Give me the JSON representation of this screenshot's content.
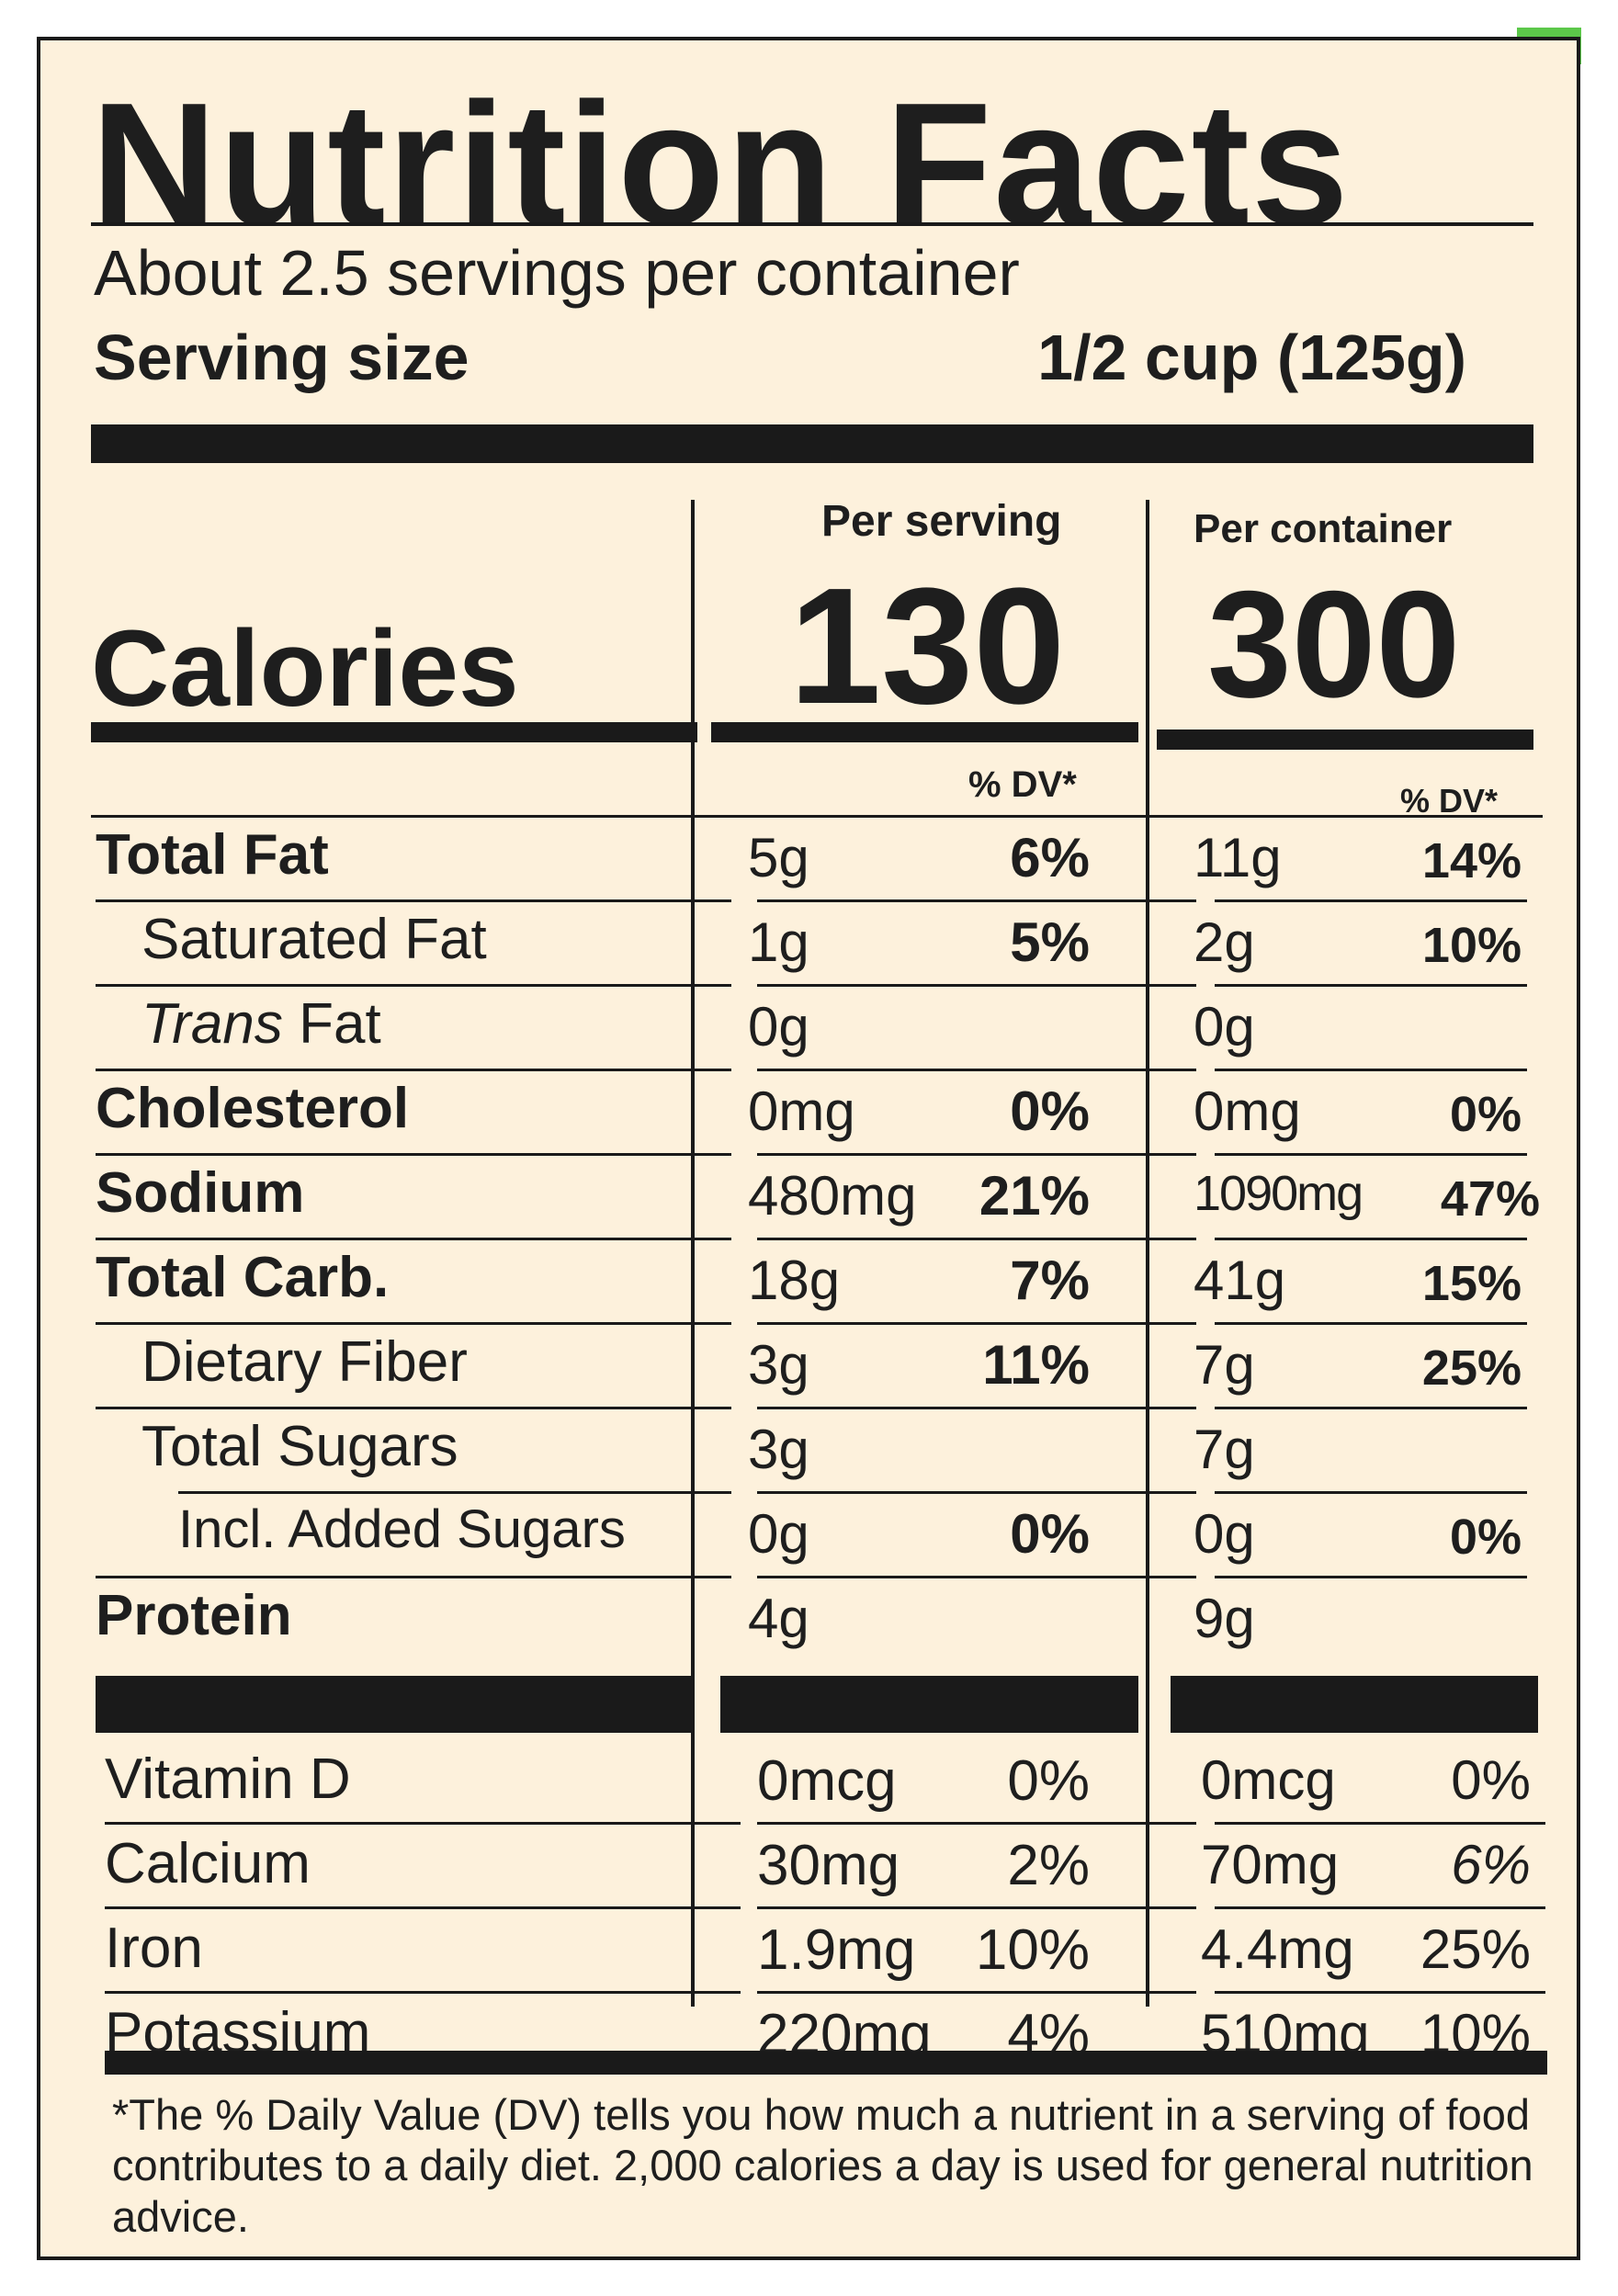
{
  "label": {
    "title": "Nutrition Facts",
    "servings_per_container": "About 2.5 servings per container",
    "serving_size_label": "Serving size",
    "serving_size_value": "1/2 cup (125g)",
    "per_serving_header": "Per serving",
    "per_container_header": "Per container",
    "calories_label": "Calories",
    "calories_per_serving": "130",
    "calories_per_container": "300",
    "dv_header_serving": "% DV*",
    "dv_header_container": "% DV*"
  },
  "nutrients": [
    {
      "name": "Total Fat",
      "style": "bold",
      "serving_amount": "5g",
      "serving_dv": "6%",
      "container_amount": "11g",
      "container_dv": "14%"
    },
    {
      "name": "Saturated Fat",
      "style": "indent",
      "serving_amount": "1g",
      "serving_dv": "5%",
      "container_amount": "2g",
      "container_dv": "10%"
    },
    {
      "name_italic": "Trans",
      "name": " Fat",
      "style": "indent",
      "serving_amount": "0g",
      "serving_dv": "",
      "container_amount": "0g",
      "container_dv": ""
    },
    {
      "name": "Cholesterol",
      "style": "bold",
      "serving_amount": "0mg",
      "serving_dv": "0%",
      "container_amount": "0mg",
      "container_dv": "0%"
    },
    {
      "name": "Sodium",
      "style": "bold",
      "serving_amount": "480mg",
      "serving_dv": "21%",
      "container_amount": "1090mg",
      "container_dv": "47%"
    },
    {
      "name": "Total Carb.",
      "style": "bold",
      "serving_amount": "18g",
      "serving_dv": "7%",
      "container_amount": "41g",
      "container_dv": "15%"
    },
    {
      "name": "Dietary Fiber",
      "style": "indent",
      "serving_amount": "3g",
      "serving_dv": "11%",
      "container_amount": "7g",
      "container_dv": "25%"
    },
    {
      "name": "Total Sugars",
      "style": "indent",
      "serving_amount": "3g",
      "serving_dv": "",
      "container_amount": "7g",
      "container_dv": ""
    },
    {
      "name": "Incl. Added Sugars",
      "style": "indent2",
      "serving_amount": "0g",
      "serving_dv": "0%",
      "container_amount": "0g",
      "container_dv": "0%"
    },
    {
      "name": "Protein",
      "style": "bold",
      "serving_amount": "4g",
      "serving_dv": "",
      "container_amount": "9g",
      "container_dv": ""
    }
  ],
  "vitamins": [
    {
      "name": "Vitamin D",
      "serving_amount": "0mcg",
      "serving_dv": "0%",
      "container_amount": "0mcg",
      "container_dv": "0%"
    },
    {
      "name": "Calcium",
      "serving_amount": "30mg",
      "serving_dv": "2%",
      "container_amount": "70mg",
      "container_dv": "6%"
    },
    {
      "name": "Iron",
      "serving_amount": "1.9mg",
      "serving_dv": "10%",
      "container_amount": "4.4mg",
      "container_dv": "25%"
    },
    {
      "name": "Potassium",
      "serving_amount": "220mg",
      "serving_dv": "4%",
      "container_amount": "510mg",
      "container_dv": "10%"
    }
  ],
  "footnote": "*The % Daily Value (DV) tells you how much a nutrient in a serving of food contributes to a daily diet. 2,000 calories a day is used for general nutrition advice.",
  "colors": {
    "panel": "#fdf1dc",
    "ink": "#1a1a1a",
    "accent": "#5cc84a"
  }
}
